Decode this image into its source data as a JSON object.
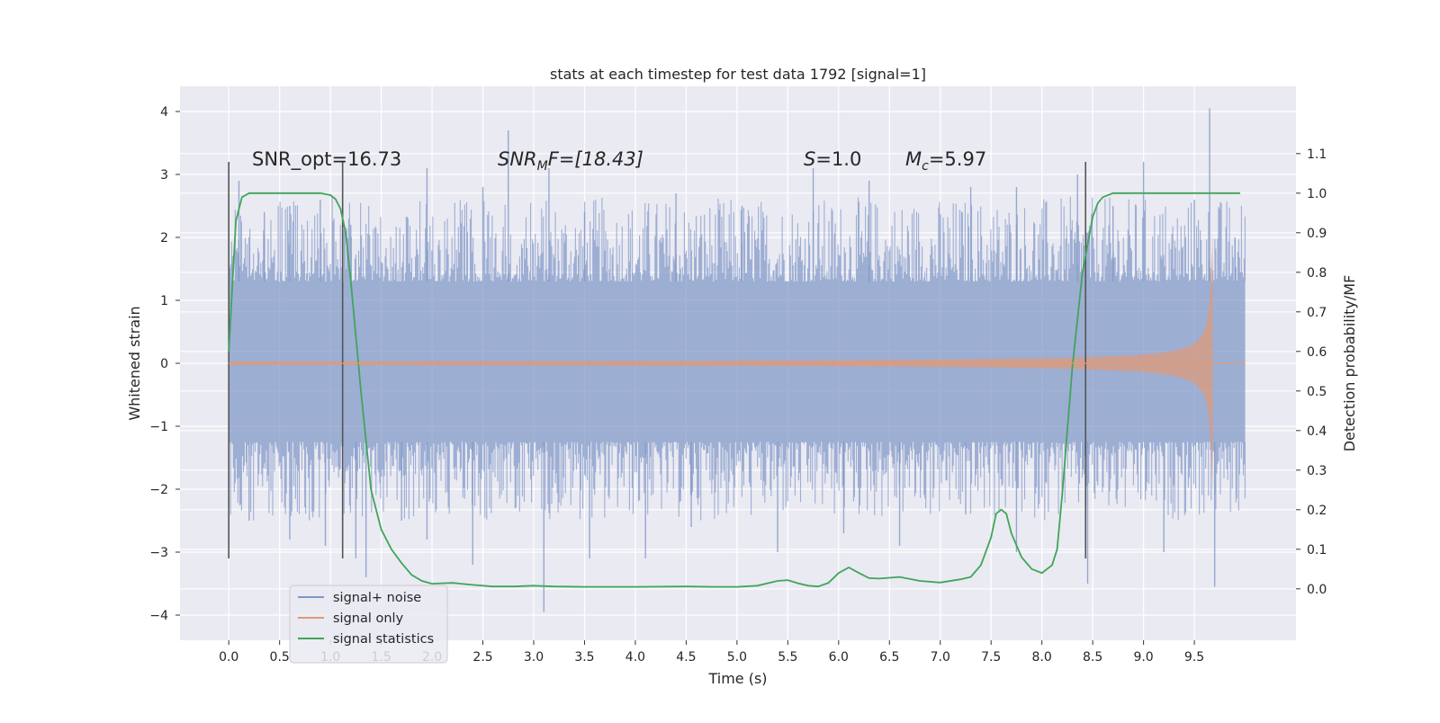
{
  "chart_data": {
    "type": "line",
    "title": "stats at each timestep for test data 1792 [signal=1]",
    "xlabel": "Time (s)",
    "ylabel": "Whitened strain",
    "y2label": "Detection probability/MF",
    "xlim": [
      -0.48,
      10.5
    ],
    "ylim": [
      -4.4,
      4.4
    ],
    "y2lim": [
      -0.13,
      1.27
    ],
    "x_ticks": [
      "0.0",
      "0.5",
      "1.0",
      "1.5",
      "2.0",
      "2.5",
      "3.0",
      "3.5",
      "4.0",
      "4.5",
      "5.0",
      "5.5",
      "6.0",
      "6.5",
      "7.0",
      "7.5",
      "8.0",
      "8.5",
      "9.0",
      "9.5"
    ],
    "y_ticks": [
      "4",
      "3",
      "2",
      "1",
      "0",
      "−1",
      "−2",
      "−3",
      "−4"
    ],
    "y2_ticks": [
      "1.1",
      "1.0",
      "0.9",
      "0.8",
      "0.7",
      "0.6",
      "0.5",
      "0.4",
      "0.3",
      "0.2",
      "0.1",
      "0.0"
    ],
    "grid": true,
    "legend_position": "lower-left",
    "annotations": {
      "snr_opt": "SNR_opt=16.73",
      "snr_mf_base": "SNR",
      "snr_mf_sub": "M",
      "snr_mf_rest": "F=[18.43]",
      "s_sym": "S",
      "s_val": "=1.0",
      "mc_sym": "M",
      "mc_sub": "c",
      "mc_val": "=5.97"
    },
    "noise": {
      "x_start": 0.0,
      "x_end": 10.0,
      "base_upper": 1.3,
      "base_lower": -1.25,
      "spikes_upper": [
        [
          0.1,
          2.9
        ],
        [
          0.35,
          2.4
        ],
        [
          0.6,
          2.5
        ],
        [
          0.9,
          2.6
        ],
        [
          1.2,
          2.2
        ],
        [
          1.95,
          3.1
        ],
        [
          2.5,
          2.8
        ],
        [
          2.75,
          3.7
        ],
        [
          3.15,
          3.1
        ],
        [
          3.5,
          2.4
        ],
        [
          4.4,
          2.7
        ],
        [
          5.05,
          2.5
        ],
        [
          5.75,
          3.1
        ],
        [
          6.3,
          2.9
        ],
        [
          7.3,
          2.8
        ],
        [
          7.75,
          2.8
        ],
        [
          8.35,
          3.0
        ],
        [
          8.7,
          2.5
        ],
        [
          9.0,
          3.2
        ],
        [
          9.5,
          2.6
        ],
        [
          9.65,
          4.05
        ],
        [
          9.9,
          2.0
        ]
      ],
      "spikes_lower": [
        [
          0.2,
          -2.5
        ],
        [
          0.6,
          -2.8
        ],
        [
          0.95,
          -2.9
        ],
        [
          1.25,
          -3.1
        ],
        [
          1.35,
          -3.4
        ],
        [
          1.7,
          -2.5
        ],
        [
          1.95,
          -2.8
        ],
        [
          2.4,
          -3.2
        ],
        [
          3.1,
          -3.95
        ],
        [
          3.55,
          -3.1
        ],
        [
          4.1,
          -3.1
        ],
        [
          4.55,
          -2.6
        ],
        [
          5.4,
          -3.0
        ],
        [
          6.05,
          -2.7
        ],
        [
          6.6,
          -2.9
        ],
        [
          7.25,
          -2.4
        ],
        [
          7.75,
          -3.0
        ],
        [
          8.45,
          -3.5
        ],
        [
          9.2,
          -3.0
        ],
        [
          9.7,
          -3.55
        ]
      ]
    },
    "series": [
      {
        "name": "signal+ noise",
        "color": "#7f97c6"
      },
      {
        "name": "signal only",
        "color": "#dd9a7a",
        "peak_time": 9.68
      },
      {
        "name": "signal statistics",
        "color": "#3fa55a",
        "axis": "right",
        "x": [
          0.0,
          0.07,
          0.13,
          0.2,
          0.3,
          0.5,
          0.7,
          0.9,
          1.0,
          1.05,
          1.1,
          1.15,
          1.2,
          1.3,
          1.4,
          1.5,
          1.6,
          1.7,
          1.8,
          1.9,
          2.0,
          2.2,
          2.4,
          2.6,
          2.8,
          3.0,
          3.2,
          3.5,
          4.0,
          4.5,
          4.8,
          5.0,
          5.2,
          5.4,
          5.5,
          5.6,
          5.7,
          5.8,
          5.9,
          6.0,
          6.1,
          6.2,
          6.3,
          6.4,
          6.6,
          6.8,
          7.0,
          7.2,
          7.3,
          7.4,
          7.5,
          7.55,
          7.6,
          7.65,
          7.7,
          7.8,
          7.9,
          8.0,
          8.1,
          8.15,
          8.2,
          8.3,
          8.4,
          8.5,
          8.55,
          8.6,
          8.7,
          9.0,
          9.5,
          9.95
        ],
        "y": [
          0.6,
          0.93,
          0.99,
          1.0,
          1.0,
          1.0,
          1.0,
          1.0,
          0.995,
          0.985,
          0.96,
          0.9,
          0.78,
          0.5,
          0.25,
          0.15,
          0.1,
          0.065,
          0.035,
          0.02,
          0.013,
          0.015,
          0.01,
          0.006,
          0.006,
          0.008,
          0.006,
          0.005,
          0.005,
          0.006,
          0.005,
          0.005,
          0.008,
          0.02,
          0.022,
          0.014,
          0.008,
          0.006,
          0.015,
          0.04,
          0.054,
          0.04,
          0.027,
          0.026,
          0.03,
          0.02,
          0.016,
          0.024,
          0.03,
          0.06,
          0.13,
          0.19,
          0.2,
          0.19,
          0.14,
          0.08,
          0.05,
          0.04,
          0.06,
          0.1,
          0.24,
          0.56,
          0.8,
          0.94,
          0.975,
          0.99,
          1.0,
          1.0,
          1.0,
          1.0
        ]
      }
    ],
    "vlines": [
      0.0,
      1.12,
      8.43
    ],
    "vlines_range": [
      -3.1,
      3.2
    ]
  }
}
